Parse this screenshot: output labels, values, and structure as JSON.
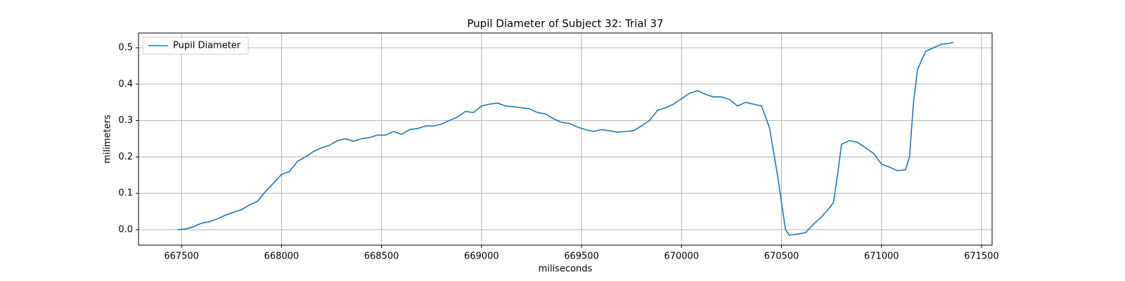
{
  "chart_data": {
    "type": "line",
    "title": "Pupil Diameter of Subject 32: Trial 37",
    "xlabel": "miliseconds",
    "ylabel": "milimeters",
    "x": [
      667480,
      667520,
      667560,
      667600,
      667640,
      667680,
      667720,
      667760,
      667800,
      667840,
      667880,
      667920,
      667960,
      668000,
      668040,
      668080,
      668120,
      668160,
      668200,
      668240,
      668280,
      668320,
      668360,
      668400,
      668440,
      668480,
      668520,
      668560,
      668600,
      668640,
      668680,
      668720,
      668760,
      668800,
      668840,
      668880,
      668920,
      668960,
      669000,
      669040,
      669080,
      669120,
      669160,
      669200,
      669240,
      669280,
      669320,
      669360,
      669400,
      669440,
      669480,
      669520,
      669560,
      669600,
      669640,
      669680,
      669720,
      669760,
      669800,
      669840,
      669880,
      669920,
      669960,
      670000,
      670040,
      670080,
      670120,
      670160,
      670200,
      670240,
      670280,
      670320,
      670360,
      670400,
      670440,
      670480,
      670520,
      670540,
      670580,
      670620,
      670660,
      670700,
      670740,
      670760,
      670780,
      670800,
      670840,
      670880,
      670920,
      670960,
      671000,
      671040,
      671080,
      671120,
      671140,
      671160,
      671180,
      671220,
      671260,
      671300,
      671340,
      671360
    ],
    "series": [
      {
        "name": "Pupil Diameter",
        "color": "#1f77b4",
        "values": [
          0.0,
          0.002,
          0.008,
          0.018,
          0.022,
          0.03,
          0.04,
          0.048,
          0.055,
          0.068,
          0.078,
          0.105,
          0.128,
          0.152,
          0.16,
          0.188,
          0.2,
          0.215,
          0.225,
          0.232,
          0.245,
          0.25,
          0.243,
          0.25,
          0.253,
          0.26,
          0.26,
          0.27,
          0.262,
          0.275,
          0.278,
          0.285,
          0.285,
          0.29,
          0.3,
          0.31,
          0.325,
          0.322,
          0.34,
          0.345,
          0.348,
          0.34,
          0.338,
          0.335,
          0.332,
          0.322,
          0.318,
          0.305,
          0.295,
          0.292,
          0.282,
          0.275,
          0.27,
          0.275,
          0.272,
          0.268,
          0.27,
          0.272,
          0.285,
          0.3,
          0.328,
          0.335,
          0.345,
          0.36,
          0.375,
          0.382,
          0.372,
          0.365,
          0.365,
          0.358,
          0.34,
          0.35,
          0.345,
          0.34,
          0.28,
          0.15,
          0.0,
          -0.015,
          -0.012,
          -0.008,
          0.015,
          0.035,
          0.06,
          0.075,
          0.15,
          0.235,
          0.245,
          0.24,
          0.225,
          0.21,
          0.18,
          0.172,
          0.162,
          0.165,
          0.2,
          0.35,
          0.44,
          0.49,
          0.5,
          0.51,
          0.512,
          0.515
        ]
      }
    ],
    "xlim": [
      667285,
      671553
    ],
    "ylim": [
      -0.0425,
      0.5405
    ],
    "xticks": [
      667500,
      668000,
      668500,
      669000,
      669500,
      670000,
      670500,
      671000,
      671500
    ],
    "yticks": [
      {
        "value": 0,
        "label": "0.0"
      },
      0.1,
      0.2,
      0.3,
      0.4,
      0.5
    ],
    "grid": true,
    "legend": "upper-left"
  }
}
